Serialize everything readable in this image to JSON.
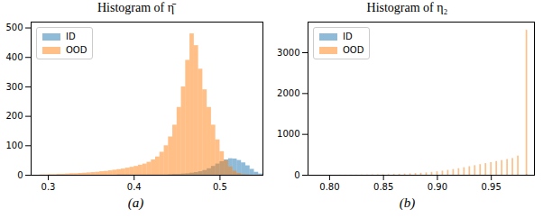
{
  "chart_data": [
    {
      "type": "histogram",
      "title": "Histogram of η̄",
      "caption": "(a)",
      "legend": "upper left",
      "bins": [
        0.28,
        0.285,
        0.29,
        0.295,
        0.3,
        0.305,
        0.31,
        0.315,
        0.32,
        0.325,
        0.33,
        0.335,
        0.34,
        0.345,
        0.35,
        0.355,
        0.36,
        0.365,
        0.37,
        0.375,
        0.38,
        0.385,
        0.39,
        0.395,
        0.4,
        0.405,
        0.41,
        0.415,
        0.42,
        0.425,
        0.43,
        0.435,
        0.44,
        0.445,
        0.45,
        0.455,
        0.46,
        0.465,
        0.47,
        0.475,
        0.48,
        0.485,
        0.49,
        0.495,
        0.5,
        0.505,
        0.51,
        0.515,
        0.52,
        0.525,
        0.53,
        0.535,
        0.54,
        0.545,
        0.55
      ],
      "series": [
        {
          "name": "ID",
          "color": "#1f77b4",
          "values": [
            0,
            0,
            0,
            0,
            0,
            0,
            0,
            0,
            0,
            0,
            0,
            0,
            0,
            0,
            0,
            0,
            0,
            0,
            0,
            0,
            1,
            1,
            1,
            1,
            1,
            1,
            1,
            1,
            1,
            1,
            1,
            1,
            2,
            3,
            3,
            4,
            5,
            7,
            9,
            12,
            16,
            22,
            30,
            38,
            46,
            52,
            56,
            55,
            50,
            42,
            32,
            20,
            10,
            4
          ]
        },
        {
          "name": "OOD",
          "color": "#ff7f0e",
          "values": [
            0,
            0,
            1,
            1,
            2,
            2,
            3,
            3,
            4,
            5,
            5,
            6,
            7,
            8,
            9,
            10,
            12,
            13,
            15,
            17,
            19,
            21,
            24,
            27,
            30,
            34,
            38,
            44,
            52,
            62,
            78,
            100,
            130,
            170,
            230,
            300,
            390,
            480,
            440,
            360,
            290,
            230,
            170,
            120,
            80,
            50,
            28,
            14,
            6,
            2,
            1,
            0,
            0,
            0
          ]
        }
      ],
      "xlim": [
        0.28,
        0.55
      ],
      "xticks": [
        0.3,
        0.4,
        0.5
      ],
      "ylim": [
        0,
        520
      ],
      "yticks": [
        0,
        100,
        200,
        300,
        400,
        500
      ]
    },
    {
      "type": "bar",
      "title": "Histogram of η₂",
      "caption": "(b)",
      "legend": "upper left",
      "x": [
        0.8,
        0.805,
        0.81,
        0.815,
        0.82,
        0.825,
        0.83,
        0.835,
        0.84,
        0.845,
        0.85,
        0.855,
        0.86,
        0.865,
        0.87,
        0.875,
        0.88,
        0.885,
        0.89,
        0.895,
        0.9,
        0.905,
        0.91,
        0.915,
        0.92,
        0.925,
        0.93,
        0.935,
        0.94,
        0.945,
        0.95,
        0.955,
        0.96,
        0.965,
        0.97,
        0.975,
        0.983
      ],
      "series": [
        {
          "name": "ID",
          "color": "#1f77b4",
          "values": [
            0,
            0,
            0,
            0,
            0,
            0,
            0,
            0,
            0,
            0,
            0,
            0,
            0,
            0,
            0,
            0,
            0,
            0,
            0,
            0,
            0,
            0,
            0,
            0,
            0,
            0,
            0,
            0,
            0,
            0,
            0,
            0,
            0,
            1,
            2,
            3,
            15
          ]
        },
        {
          "name": "OOD",
          "color": "#ff7f0e",
          "values": [
            1,
            1,
            2,
            2,
            3,
            4,
            5,
            6,
            8,
            10,
            12,
            15,
            18,
            22,
            27,
            33,
            40,
            48,
            58,
            70,
            85,
            100,
            120,
            140,
            160,
            185,
            210,
            235,
            260,
            285,
            310,
            335,
            360,
            385,
            410,
            470,
            3550
          ]
        }
      ],
      "xlim": [
        0.78,
        0.99
      ],
      "xticks": [
        {
          "value": 0.8,
          "label": "0.80"
        },
        {
          "value": 0.85,
          "label": "0.85"
        },
        {
          "value": 0.9,
          "label": "0.90"
        },
        {
          "value": 0.95,
          "label": "0.95"
        }
      ],
      "ylim": [
        0,
        3750
      ],
      "yticks": [
        0,
        1000,
        2000,
        3000
      ]
    }
  ]
}
